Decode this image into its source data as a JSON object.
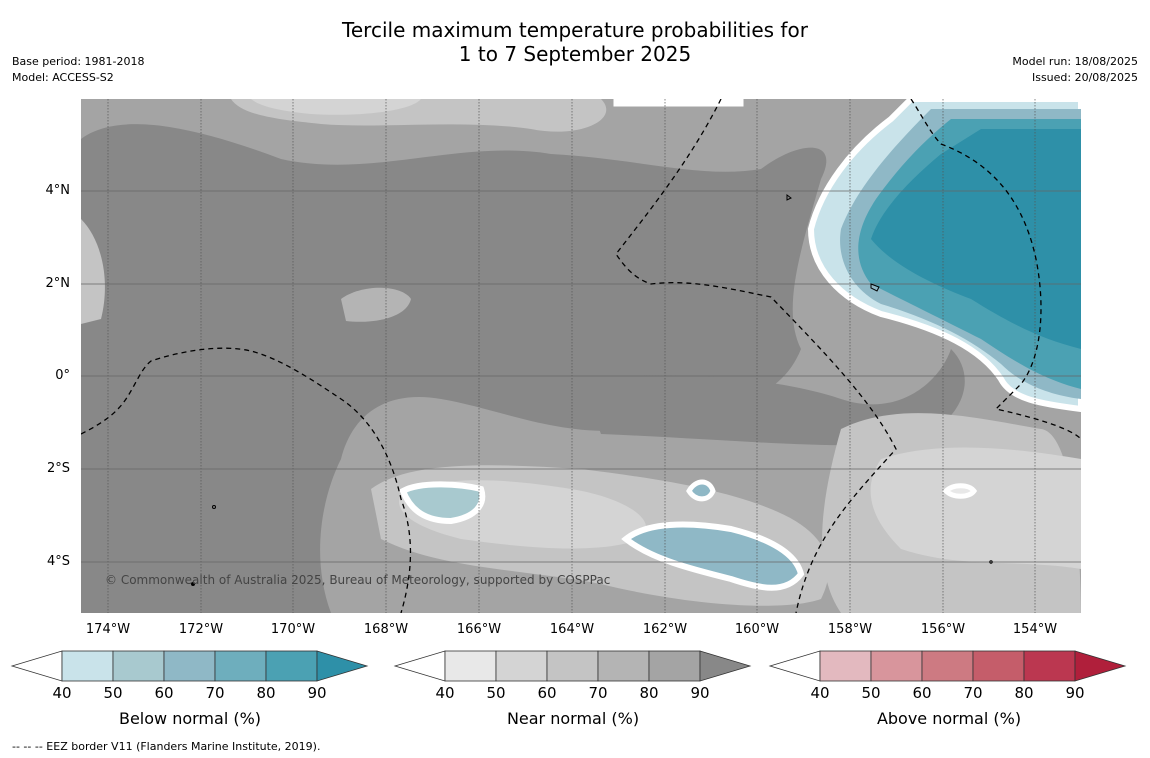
{
  "title_line1": "Tercile maximum temperature probabilities for",
  "title_line2": "1 to 7 September 2025",
  "base_period": "Base period: 1981-2018",
  "model": "Model: ACCESS-S2",
  "model_run": "Model run: 18/08/2025",
  "issued": "Issued: 20/08/2025",
  "copyright": "© Commonwealth of Australia 2025, Bureau of Meteorology, supported by COSPPac",
  "footnote": "--  --  -- EEZ border V11 (Flanders Marine Institute, 2019).",
  "lat_labels": [
    "4°N",
    "2°N",
    "0°",
    "2°S",
    "4°S"
  ],
  "lon_labels": [
    "174°W",
    "172°W",
    "170°W",
    "168°W",
    "166°W",
    "164°W",
    "162°W",
    "160°W",
    "158°W",
    "156°W",
    "154°W"
  ],
  "colorbars": [
    {
      "label": "Below normal (%)",
      "ticks": [
        "40",
        "50",
        "60",
        "70",
        "80",
        "90"
      ],
      "colors": [
        "#c9e3ea",
        "#a8c9cf",
        "#8fb8c6",
        "#6eaebd",
        "#4ba1b3",
        "#2e90a8"
      ]
    },
    {
      "label": "Near normal (%)",
      "ticks": [
        "40",
        "50",
        "60",
        "70",
        "80",
        "90"
      ],
      "colors": [
        "#e8e8e8",
        "#d4d4d4",
        "#c4c4c4",
        "#b4b4b4",
        "#a4a4a4",
        "#888888"
      ]
    },
    {
      "label": "Above normal (%)",
      "ticks": [
        "40",
        "50",
        "60",
        "70",
        "80",
        "90"
      ],
      "colors": [
        "#e3b9bf",
        "#d8959c",
        "#cd7a82",
        "#c55d6a",
        "#bb3750",
        "#b01f3b"
      ]
    }
  ],
  "colors": {
    "near_dark": "#888888",
    "near_mid": "#a4a4a4",
    "near_light": "#c4c4c4",
    "near_pale": "#d4d4d4",
    "below_dark": "#2e90a8",
    "below_mid": "#4ba1b3",
    "below_light": "#8fb8c6",
    "above": "#cd8a93"
  }
}
